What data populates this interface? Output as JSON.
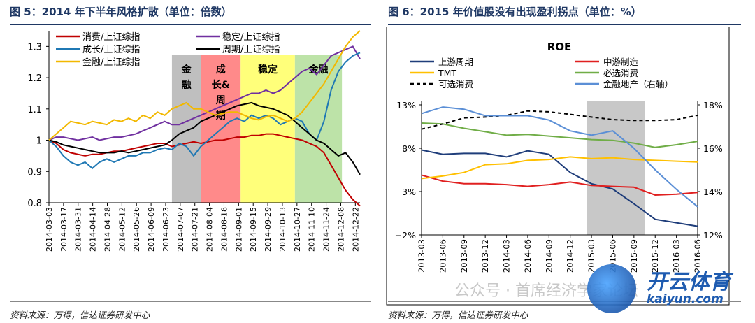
{
  "left": {
    "title": "图 5：2014 年下半年风格扩散（单位：倍数）",
    "source": "资料来源：万得，信达证券研发中心",
    "chart_data": {
      "type": "line",
      "ylim": [
        0.8,
        1.35
      ],
      "yticks": [
        "0.8",
        "0.9",
        "1",
        "1.1",
        "1.2",
        "1.3"
      ],
      "yticks_values": [
        0.8,
        0.9,
        1.0,
        1.1,
        1.2,
        1.3
      ],
      "x_count": 44,
      "x_labels": [
        "2014-03-03",
        "2014-03-17",
        "2014-03-31",
        "2014-04-14",
        "2014-04-28",
        "2014-05-12",
        "2014-05-26",
        "2014-06-09",
        "2014-06-23",
        "2014-07-07",
        "2014-07-21",
        "2014-08-04",
        "2014-08-18",
        "2014-09-01",
        "2014-09-15",
        "2014-09-29",
        "2014-10-13",
        "2014-10-27",
        "2014-11-10",
        "2014-11-24",
        "2014-12-08",
        "2014-12-22"
      ],
      "regions": [
        {
          "label": "金\n融",
          "start": 17,
          "end": 21,
          "color": "#bfbfbf"
        },
        {
          "label": "成\n长&\n周\n期",
          "start": 21,
          "end": 26.5,
          "color": "#ff8a8a"
        },
        {
          "label": "稳定",
          "start": 26.5,
          "end": 34,
          "color": "#ffff7a"
        },
        {
          "label": "金融",
          "start": 34,
          "end": 40.5,
          "color": "#bde3a8"
        }
      ],
      "series": [
        {
          "name": "消费/上证综指",
          "color": "#c00000",
          "values": [
            1.0,
            0.99,
            0.97,
            0.96,
            0.955,
            0.95,
            0.955,
            0.955,
            0.96,
            0.965,
            0.965,
            0.97,
            0.975,
            0.98,
            0.985,
            0.99,
            0.99,
            0.98,
            0.985,
            0.99,
            0.995,
            0.99,
            0.995,
            1.0,
            1.0,
            1.005,
            1.01,
            1.01,
            1.015,
            1.015,
            1.02,
            1.02,
            1.015,
            1.01,
            1.005,
            1.0,
            0.99,
            0.98,
            0.96,
            0.92,
            0.88,
            0.84,
            0.81,
            0.79
          ]
        },
        {
          "name": "稳定/上证综指",
          "color": "#7030a0",
          "values": [
            1.0,
            1.01,
            1.01,
            1.005,
            1.0,
            1.005,
            1.01,
            1.0,
            1.005,
            1.01,
            1.01,
            1.015,
            1.02,
            1.03,
            1.04,
            1.05,
            1.06,
            1.05,
            1.05,
            1.06,
            1.07,
            1.08,
            1.09,
            1.1,
            1.11,
            1.12,
            1.13,
            1.14,
            1.15,
            1.15,
            1.16,
            1.15,
            1.16,
            1.18,
            1.2,
            1.22,
            1.23,
            1.21,
            1.24,
            1.27,
            1.28,
            1.29,
            1.3,
            1.26
          ]
        },
        {
          "name": "成长/上证综指",
          "color": "#1f78b4",
          "values": [
            1.0,
            0.98,
            0.95,
            0.93,
            0.92,
            0.93,
            0.91,
            0.93,
            0.94,
            0.93,
            0.94,
            0.95,
            0.95,
            0.96,
            0.96,
            0.97,
            0.975,
            0.97,
            0.99,
            0.98,
            0.95,
            0.98,
            1.0,
            1.02,
            1.04,
            1.06,
            1.07,
            1.06,
            1.08,
            1.07,
            1.08,
            1.07,
            1.05,
            1.06,
            1.07,
            1.06,
            1.02,
            1.0,
            1.06,
            1.16,
            1.22,
            1.25,
            1.27,
            1.28
          ]
        },
        {
          "name": "周期/上证综指",
          "color": "#000000",
          "values": [
            1.0,
            0.995,
            0.985,
            0.98,
            0.975,
            0.97,
            0.965,
            0.96,
            0.96,
            0.96,
            0.965,
            0.96,
            0.965,
            0.97,
            0.975,
            0.98,
            0.985,
            1.0,
            1.02,
            1.03,
            1.04,
            1.06,
            1.07,
            1.08,
            1.09,
            1.1,
            1.11,
            1.115,
            1.12,
            1.11,
            1.105,
            1.1,
            1.09,
            1.08,
            1.06,
            1.04,
            1.02,
            1.0,
            0.99,
            0.97,
            0.95,
            0.96,
            0.93,
            0.89
          ]
        },
        {
          "name": "金融/上证综指",
          "color": "#f2b800",
          "values": [
            1.0,
            1.02,
            1.04,
            1.06,
            1.055,
            1.05,
            1.06,
            1.055,
            1.05,
            1.065,
            1.06,
            1.07,
            1.06,
            1.08,
            1.07,
            1.09,
            1.08,
            1.1,
            1.11,
            1.12,
            1.1,
            1.1,
            1.09,
            1.08,
            1.085,
            1.09,
            1.09,
            1.08,
            1.07,
            1.065,
            1.075,
            1.08,
            1.07,
            1.06,
            1.07,
            1.09,
            1.12,
            1.15,
            1.18,
            1.22,
            1.26,
            1.3,
            1.33,
            1.35
          ]
        }
      ]
    }
  },
  "right": {
    "title": "图 6：2015 年价值股没有出现盈利拐点（单位：%）",
    "source": "资料来源：万得，信达证券研发中心",
    "chart_data": {
      "type": "line",
      "title": "ROE",
      "ylim_left": [
        -2,
        13
      ],
      "yticks_left": [
        "−2%",
        "3%",
        "8%",
        "13%"
      ],
      "yticks_left_values": [
        -2,
        3,
        8,
        13
      ],
      "ylim_right": [
        12,
        18
      ],
      "yticks_right": [
        "12%",
        "14%",
        "16%",
        "18%"
      ],
      "yticks_right_values": [
        12,
        14,
        16,
        18
      ],
      "x_labels": [
        "2013-03",
        "2013-06",
        "2013-09",
        "2013-12",
        "2014-03",
        "2014-06",
        "2014-09",
        "2014-12",
        "2015-03",
        "2015-06",
        "2015-09",
        "2015-12",
        "2016-03",
        "2016-06"
      ],
      "shade": {
        "start": 7.8,
        "end": 10.5,
        "color": "#c8c8c8"
      },
      "series": [
        {
          "name": "上游周期",
          "color": "#1f3d7a",
          "axis": "left",
          "dash": false,
          "values": [
            7.8,
            7.3,
            7.4,
            7.4,
            7.0,
            7.7,
            7.3,
            5.2,
            3.9,
            3.3,
            1.6,
            -0.2,
            -0.6,
            -1.0
          ]
        },
        {
          "name": "中游制造",
          "color": "#e02020",
          "axis": "left",
          "dash": false,
          "values": [
            4.9,
            4.2,
            3.9,
            3.9,
            3.8,
            3.6,
            3.8,
            4.1,
            3.7,
            3.6,
            3.5,
            2.6,
            2.7,
            2.9
          ]
        },
        {
          "name": "TMT",
          "color": "#ffc000",
          "axis": "left",
          "dash": false,
          "values": [
            4.5,
            4.8,
            5.2,
            6.1,
            6.2,
            6.6,
            6.7,
            7.0,
            6.8,
            6.9,
            6.7,
            6.6,
            6.5,
            6.4
          ]
        },
        {
          "name": "必选消费",
          "color": "#70ad47",
          "axis": "left",
          "dash": false,
          "values": [
            10.9,
            10.8,
            10.3,
            9.9,
            9.5,
            9.6,
            9.4,
            9.2,
            9.0,
            8.9,
            8.6,
            8.1,
            8.4,
            8.8
          ]
        },
        {
          "name": "可选消费",
          "color": "#000000",
          "axis": "left",
          "dash": true,
          "values": [
            10.2,
            10.8,
            11.5,
            11.6,
            11.8,
            12.3,
            12.2,
            11.9,
            11.6,
            11.3,
            11.2,
            11.2,
            11.3,
            11.8
          ]
        },
        {
          "name": "金融地产（右轴）",
          "color": "#5b8fd6",
          "axis": "right",
          "dash": false,
          "values": [
            17.6,
            17.9,
            17.8,
            17.5,
            17.5,
            17.5,
            17.3,
            16.8,
            16.6,
            16.8,
            16.0,
            15.0,
            14.1,
            13.3
          ]
        }
      ]
    }
  },
  "watermark": {
    "text": "公众号 · 首席经济学家论坛",
    "logo_cn": "开云体育",
    "logo_en": "kaiyun.com"
  }
}
